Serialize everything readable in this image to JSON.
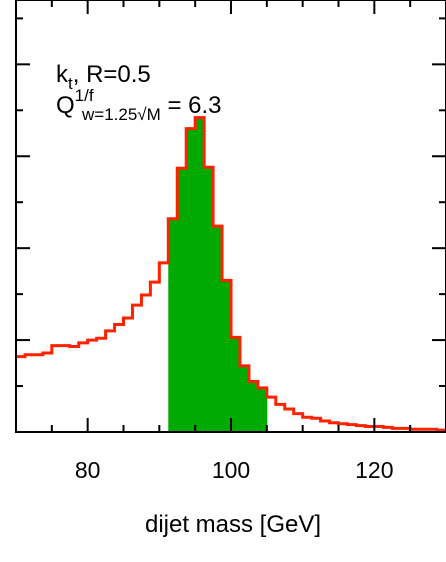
{
  "chart_data": {
    "type": "histogram",
    "xlabel": "dijet mass [GeV]",
    "xlim": [
      70,
      130
    ],
    "ylim": [
      0,
      4.7
    ],
    "x_ticks": [
      80,
      100,
      120
    ],
    "x_tick_labels": [
      "80",
      "100",
      "120"
    ],
    "y_tick_labels": [],
    "y_ticks": [
      1,
      2,
      3,
      4
    ],
    "annotation": {
      "line1": "k",
      "line1_sub": "t",
      "line1_rest": ", R=0.5",
      "line2": "Q",
      "line2_sup": "1/f",
      "line2_sub": "w=1.25√M",
      "line2_rest": " = 6.3"
    },
    "bin_width": 1.25,
    "bin_start": 70,
    "series": [
      {
        "style": "step",
        "color": "#ff2200",
        "values": [
          0.82,
          0.84,
          0.84,
          0.86,
          0.94,
          0.94,
          0.93,
          0.97,
          1.0,
          1.02,
          1.1,
          1.17,
          1.24,
          1.38,
          1.49,
          1.63,
          1.84,
          2.32,
          2.87,
          3.3,
          3.42,
          2.88,
          2.24,
          1.65,
          1.03,
          0.72,
          0.55,
          0.48,
          0.38,
          0.3,
          0.25,
          0.2,
          0.16,
          0.15,
          0.12,
          0.1,
          0.09,
          0.08,
          0.07,
          0.06,
          0.06,
          0.05,
          0.04,
          0.04,
          0.03,
          0.03,
          0.03,
          0.02
        ]
      }
    ],
    "highlight": {
      "color": "#00aa00",
      "x_range": [
        91.25,
        105.0
      ]
    }
  }
}
